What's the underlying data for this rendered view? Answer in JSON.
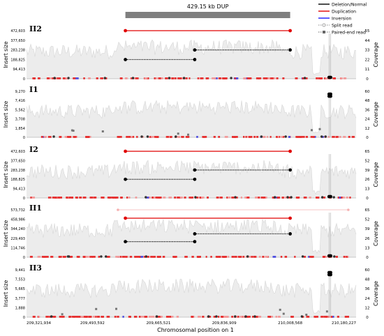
{
  "chart_data": {
    "type": "scatter",
    "title": "429.15 kb DUP",
    "xlabel": "Chromosomal position on 1",
    "xlim": [
      209321934,
      210180227
    ],
    "x_ticks": [
      209321934,
      209493592,
      209665521,
      209836909,
      210008568,
      210180227
    ],
    "x_tick_labels": [
      "209,321,934",
      "209,493,592",
      "209,665,521",
      "209,836,909",
      "210,008,568",
      "210,180,227"
    ],
    "event_span": [
      209579418,
      210008568
    ],
    "legend": {
      "position": "top-right",
      "items": [
        {
          "label": "Deletion/Normal",
          "color": "#000000",
          "style": "line"
        },
        {
          "label": "Duplication",
          "color": "#e00000",
          "style": "line"
        },
        {
          "label": "Inversion",
          "color": "#1a1aff",
          "style": "line"
        },
        {
          "label": "Split read",
          "color": "#888888",
          "style": "dot-circle"
        },
        {
          "label": "Paired-end read",
          "color": "#666666",
          "style": "dot-square"
        }
      ]
    },
    "panels": [
      {
        "id": "II2",
        "ylabel": "Insert size",
        "y2label": "Coverage",
        "y_tick_labels": [
          "472,603",
          "377,650",
          "283,238",
          "188,825",
          "94,413",
          "0"
        ],
        "y_ticks": [
          472603,
          377650,
          283238,
          188825,
          94413,
          0
        ],
        "coverage_ticks": [
          55,
          44,
          33,
          22,
          11,
          0
        ],
        "pairs": [
          {
            "type": "dup",
            "x1": 209579418,
            "x2": 210008568,
            "y": 472603
          },
          {
            "type": "del",
            "x1": 209760000,
            "x2": 210008568,
            "y": 283238
          },
          {
            "type": "del",
            "x1": 209579418,
            "x2": 209760000,
            "y": 188825
          }
        ],
        "spikes": [
          210110000,
          210114000
        ]
      },
      {
        "id": "I1",
        "ylabel": "Insert size",
        "y2label": "Coverage",
        "y_tick_labels": [
          "9,270",
          "7,416",
          "5,562",
          "3,708",
          "1,854",
          "0"
        ],
        "y_ticks": [
          9270,
          7416,
          5562,
          3708,
          1854,
          0
        ],
        "coverage_ticks": [
          60,
          48,
          36,
          24,
          12,
          0
        ],
        "pairs": [],
        "spikes": [
          210110000,
          210114000
        ]
      },
      {
        "id": "I2",
        "ylabel": "Insert size",
        "y2label": "Coverage",
        "y_tick_labels": [
          "472,603",
          "377,650",
          "283,238",
          "188,825",
          "94,413",
          "0"
        ],
        "y_ticks": [
          472603,
          377650,
          283238,
          188825,
          94413,
          0
        ],
        "coverage_ticks": [
          65,
          52,
          39,
          26,
          13,
          0
        ],
        "pairs": [
          {
            "type": "dup",
            "x1": 209579418,
            "x2": 210008568,
            "y": 472603
          },
          {
            "type": "del",
            "x1": 209760000,
            "x2": 210008568,
            "y": 283238
          },
          {
            "type": "del",
            "x1": 209579418,
            "x2": 209760000,
            "y": 188825
          }
        ],
        "spikes": [
          210110000,
          210114000
        ]
      },
      {
        "id": "II1",
        "ylabel": "Insert size",
        "y2label": "Coverage",
        "y_tick_labels": [
          "573,732",
          "458,986",
          "344,240",
          "229,493",
          "114,746",
          "0"
        ],
        "y_ticks": [
          573732,
          458986,
          344240,
          229493,
          114746,
          0
        ],
        "coverage_ticks": [
          65,
          52,
          39,
          26,
          13,
          0
        ],
        "pairs": [
          {
            "type": "faint",
            "x1": 209560000,
            "x2": 210160000,
            "y": 573732
          },
          {
            "type": "dup",
            "x1": 209579418,
            "x2": 210008568,
            "y": 472603
          },
          {
            "type": "del",
            "x1": 209760000,
            "x2": 210008568,
            "y": 283238
          },
          {
            "type": "del",
            "x1": 209579418,
            "x2": 209760000,
            "y": 188825
          }
        ],
        "spikes": [
          210110000,
          210114000
        ]
      },
      {
        "id": "II3",
        "ylabel": "Insert size",
        "y2label": "Coverage",
        "y_tick_labels": [
          "9,441",
          "7,553",
          "5,665",
          "3,777",
          "1,888",
          "0"
        ],
        "y_ticks": [
          9441,
          7553,
          5665,
          3777,
          1888,
          0
        ],
        "coverage_ticks": [
          60,
          48,
          36,
          24,
          12,
          0
        ],
        "pairs": [],
        "spikes": [
          210110000,
          210114000
        ]
      }
    ]
  }
}
